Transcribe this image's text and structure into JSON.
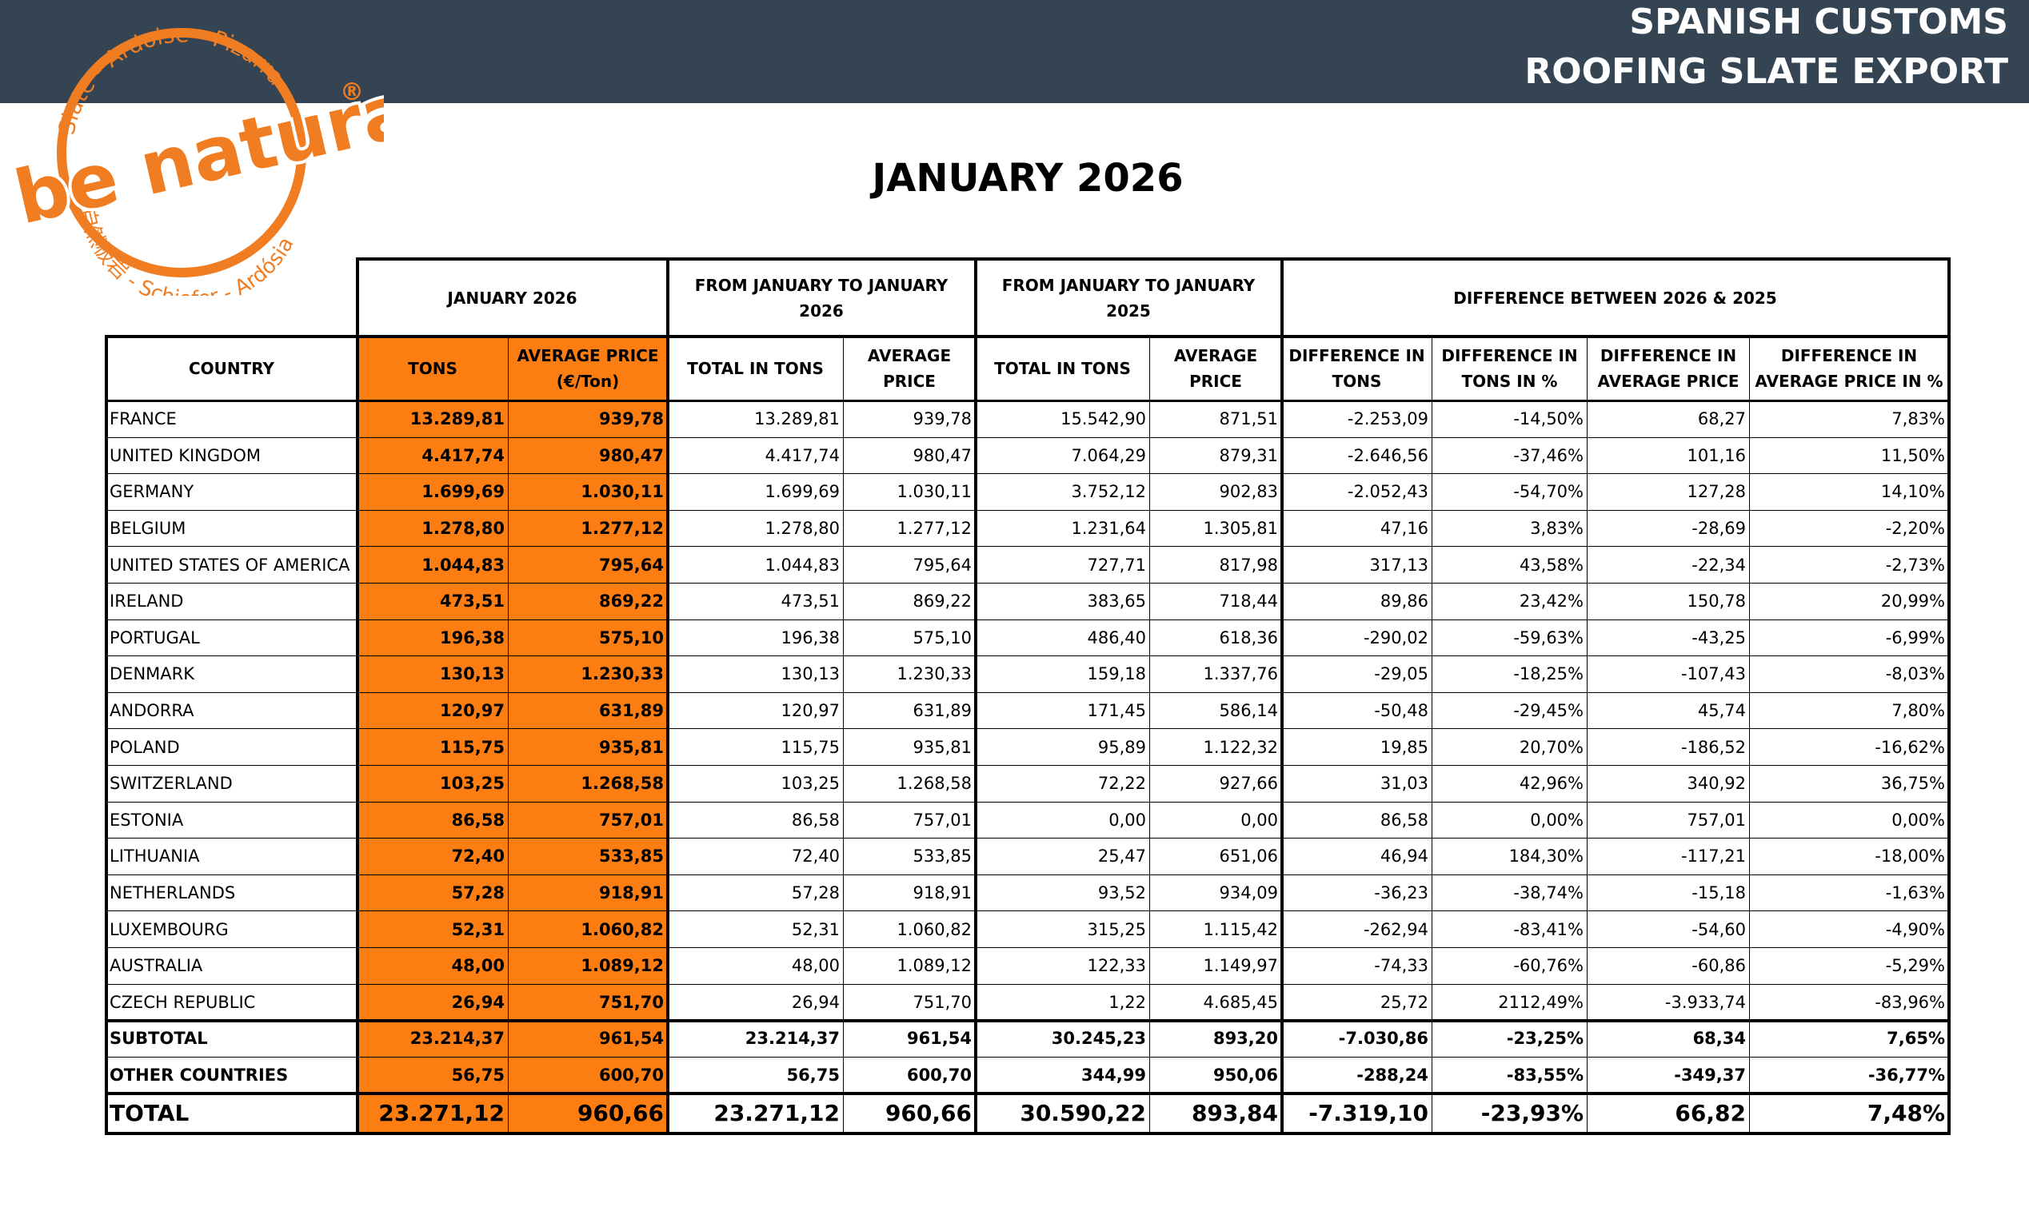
{
  "header": {
    "title_lines": [
      "SPANISH CUSTOMS",
      "ROOFING SLATE EXPORT"
    ]
  },
  "logo": {
    "top_arc": "Slate - Ardoise - Pizarra",
    "brand": "be natural",
    "registered": "®",
    "bottom_arc": "自然板岩 - Schiefer - Ardósia"
  },
  "title": "JANUARY 2026",
  "table": {
    "group_headers": [
      "JANUARY 2026",
      "FROM JANUARY TO JANUARY 2026",
      "FROM JANUARY TO JANUARY 2025",
      "DIFFERENCE BETWEEN 2026 & 2025"
    ],
    "columns": [
      "COUNTRY",
      "TONS",
      "AVERAGE PRICE (€/Ton)",
      "TOTAL IN TONS",
      "AVERAGE PRICE",
      "TOTAL IN TONS",
      "AVERAGE PRICE",
      "DIFFERENCE IN TONS",
      "DIFFERENCE IN TONS IN %",
      "DIFFERENCE IN AVERAGE PRICE",
      "DIFFERENCE IN AVERAGE PRICE IN %"
    ],
    "rows": [
      [
        "FRANCE",
        "13.289,81",
        "939,78",
        "13.289,81",
        "939,78",
        "15.542,90",
        "871,51",
        "-2.253,09",
        "-14,50%",
        "68,27",
        "7,83%"
      ],
      [
        "UNITED KINGDOM",
        "4.417,74",
        "980,47",
        "4.417,74",
        "980,47",
        "7.064,29",
        "879,31",
        "-2.646,56",
        "-37,46%",
        "101,16",
        "11,50%"
      ],
      [
        "GERMANY",
        "1.699,69",
        "1.030,11",
        "1.699,69",
        "1.030,11",
        "3.752,12",
        "902,83",
        "-2.052,43",
        "-54,70%",
        "127,28",
        "14,10%"
      ],
      [
        "BELGIUM",
        "1.278,80",
        "1.277,12",
        "1.278,80",
        "1.277,12",
        "1.231,64",
        "1.305,81",
        "47,16",
        "3,83%",
        "-28,69",
        "-2,20%"
      ],
      [
        "UNITED STATES OF AMERICA",
        "1.044,83",
        "795,64",
        "1.044,83",
        "795,64",
        "727,71",
        "817,98",
        "317,13",
        "43,58%",
        "-22,34",
        "-2,73%"
      ],
      [
        "IRELAND",
        "473,51",
        "869,22",
        "473,51",
        "869,22",
        "383,65",
        "718,44",
        "89,86",
        "23,42%",
        "150,78",
        "20,99%"
      ],
      [
        "PORTUGAL",
        "196,38",
        "575,10",
        "196,38",
        "575,10",
        "486,40",
        "618,36",
        "-290,02",
        "-59,63%",
        "-43,25",
        "-6,99%"
      ],
      [
        "DENMARK",
        "130,13",
        "1.230,33",
        "130,13",
        "1.230,33",
        "159,18",
        "1.337,76",
        "-29,05",
        "-18,25%",
        "-107,43",
        "-8,03%"
      ],
      [
        "ANDORRA",
        "120,97",
        "631,89",
        "120,97",
        "631,89",
        "171,45",
        "586,14",
        "-50,48",
        "-29,45%",
        "45,74",
        "7,80%"
      ],
      [
        "POLAND",
        "115,75",
        "935,81",
        "115,75",
        "935,81",
        "95,89",
        "1.122,32",
        "19,85",
        "20,70%",
        "-186,52",
        "-16,62%"
      ],
      [
        "SWITZERLAND",
        "103,25",
        "1.268,58",
        "103,25",
        "1.268,58",
        "72,22",
        "927,66",
        "31,03",
        "42,96%",
        "340,92",
        "36,75%"
      ],
      [
        "ESTONIA",
        "86,58",
        "757,01",
        "86,58",
        "757,01",
        "0,00",
        "0,00",
        "86,58",
        "0,00%",
        "757,01",
        "0,00%"
      ],
      [
        "LITHUANIA",
        "72,40",
        "533,85",
        "72,40",
        "533,85",
        "25,47",
        "651,06",
        "46,94",
        "184,30%",
        "-117,21",
        "-18,00%"
      ],
      [
        "NETHERLANDS",
        "57,28",
        "918,91",
        "57,28",
        "918,91",
        "93,52",
        "934,09",
        "-36,23",
        "-38,74%",
        "-15,18",
        "-1,63%"
      ],
      [
        "LUXEMBOURG",
        "52,31",
        "1.060,82",
        "52,31",
        "1.060,82",
        "315,25",
        "1.115,42",
        "-262,94",
        "-83,41%",
        "-54,60",
        "-4,90%"
      ],
      [
        "AUSTRALIA",
        "48,00",
        "1.089,12",
        "48,00",
        "1.089,12",
        "122,33",
        "1.149,97",
        "-74,33",
        "-60,76%",
        "-60,86",
        "-5,29%"
      ],
      [
        "CZECH REPUBLIC",
        "26,94",
        "751,70",
        "26,94",
        "751,70",
        "1,22",
        "4.685,45",
        "25,72",
        "2112,49%",
        "-3.933,74",
        "-83,96%"
      ]
    ],
    "summary_rows": [
      [
        "SUBTOTAL",
        "23.214,37",
        "961,54",
        "23.214,37",
        "961,54",
        "30.245,23",
        "893,20",
        "-7.030,86",
        "-23,25%",
        "68,34",
        "7,65%"
      ],
      [
        "OTHER COUNTRIES",
        "56,75",
        "600,70",
        "56,75",
        "600,70",
        "344,99",
        "950,06",
        "-288,24",
        "-83,55%",
        "-349,37",
        "-36,77%"
      ],
      [
        "TOTAL",
        "23.271,12",
        "960,66",
        "23.271,12",
        "960,66",
        "30.590,22",
        "893,84",
        "-7.319,10",
        "-23,93%",
        "66,82",
        "7,48%"
      ]
    ]
  }
}
